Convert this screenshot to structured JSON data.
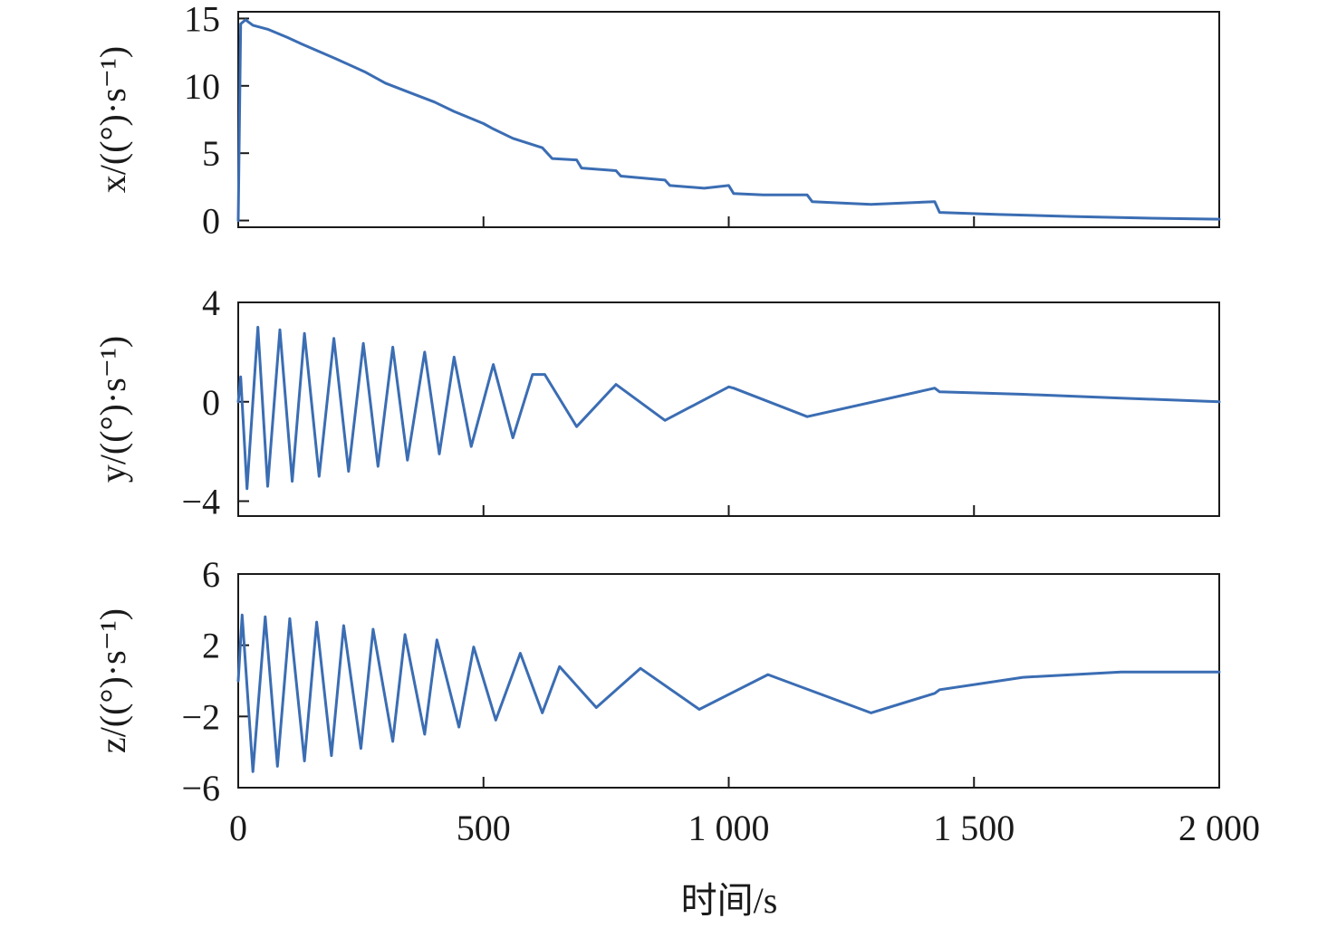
{
  "chart_data": [
    {
      "type": "line",
      "ylabel": "x/((°)·s⁻¹)",
      "xlim": [
        0,
        2000
      ],
      "ylim": [
        -0.5,
        15.5
      ],
      "yticks": [
        0,
        5,
        10,
        15
      ],
      "ytick_labels": [
        "0",
        "5",
        "10",
        "15"
      ],
      "xticks": [
        0,
        500,
        1000,
        1500,
        2000
      ],
      "grid": false,
      "line_color": "#3b6db3",
      "x": [
        0,
        5,
        15,
        30,
        60,
        100,
        130,
        200,
        260,
        300,
        350,
        400,
        440,
        500,
        520,
        560,
        620,
        640,
        690,
        700,
        770,
        780,
        870,
        880,
        950,
        1000,
        1010,
        1070,
        1160,
        1170,
        1290,
        1420,
        1430,
        1550,
        1700,
        1850,
        2000
      ],
      "y": [
        0,
        14.6,
        14.9,
        14.5,
        14.2,
        13.6,
        13.1,
        12.0,
        11.0,
        10.2,
        9.5,
        8.8,
        8.1,
        7.2,
        6.8,
        6.1,
        5.4,
        4.6,
        4.5,
        3.9,
        3.7,
        3.3,
        3.0,
        2.6,
        2.4,
        2.6,
        2.0,
        1.9,
        1.9,
        1.4,
        1.2,
        1.4,
        0.6,
        0.45,
        0.3,
        0.18,
        0.1
      ]
    },
    {
      "type": "line",
      "ylabel": "y/((°)·s⁻¹)",
      "xlim": [
        0,
        2000
      ],
      "ylim": [
        -4.6,
        4.0
      ],
      "yticks": [
        -4,
        0,
        4
      ],
      "ytick_labels": [
        "−4",
        "0",
        "4"
      ],
      "grid": false,
      "line_color": "#3b6db3",
      "x": [
        0,
        5,
        18,
        40,
        60,
        85,
        110,
        135,
        165,
        195,
        225,
        255,
        285,
        315,
        345,
        380,
        410,
        440,
        475,
        520,
        560,
        600,
        625,
        690,
        770,
        870,
        1000,
        1010,
        1160,
        1420,
        1430,
        1600,
        1800,
        2000
      ],
      "y": [
        0,
        1.0,
        -3.5,
        3.0,
        -3.4,
        2.9,
        -3.2,
        2.75,
        -3.0,
        2.55,
        -2.8,
        2.35,
        -2.6,
        2.2,
        -2.35,
        2.0,
        -2.1,
        1.8,
        -1.8,
        1.5,
        -1.45,
        1.1,
        1.1,
        -1.0,
        0.7,
        -0.75,
        0.6,
        0.55,
        -0.6,
        0.55,
        0.4,
        0.3,
        0.15,
        0.0
      ]
    },
    {
      "type": "line",
      "ylabel": "z/((°)·s⁻¹)",
      "xlim": [
        0,
        2000
      ],
      "ylim": [
        -6.0,
        6.0
      ],
      "yticks": [
        -6,
        -2,
        2,
        6
      ],
      "ytick_labels": [
        "−6",
        "−2",
        "2",
        "6"
      ],
      "grid": false,
      "line_color": "#3b6db3",
      "x": [
        0,
        8,
        30,
        55,
        80,
        105,
        135,
        160,
        190,
        215,
        250,
        275,
        315,
        340,
        380,
        405,
        450,
        480,
        525,
        575,
        620,
        655,
        730,
        820,
        940,
        1080,
        1290,
        1420,
        1430,
        1600,
        1800,
        2000
      ],
      "y": [
        0,
        3.7,
        -5.1,
        3.6,
        -4.8,
        3.5,
        -4.5,
        3.3,
        -4.2,
        3.1,
        -3.8,
        2.9,
        -3.4,
        2.6,
        -3.0,
        2.3,
        -2.6,
        1.9,
        -2.2,
        1.55,
        -1.8,
        0.8,
        -1.5,
        0.7,
        -1.6,
        0.35,
        -1.8,
        -0.7,
        -0.5,
        0.2,
        0.5,
        0.5
      ]
    }
  ],
  "x_tick_labels": [
    "0",
    "500",
    "1 000",
    "1 500",
    "2 000"
  ],
  "xlabel": "时间/s"
}
